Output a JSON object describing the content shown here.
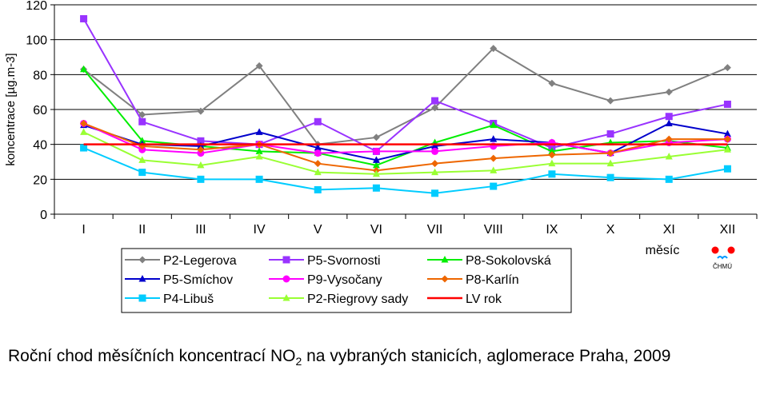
{
  "chart_data": {
    "type": "line",
    "ylabel": "koncentrace [µg.m-3]",
    "xlabel": "měsíc",
    "ylim": [
      0,
      120
    ],
    "yticks": [
      0,
      20,
      40,
      60,
      80,
      100,
      120
    ],
    "grid": true,
    "legend_position": "bottom",
    "categories": [
      "I",
      "II",
      "III",
      "IV",
      "V",
      "VI",
      "VII",
      "VIII",
      "IX",
      "X",
      "XI",
      "XII"
    ],
    "series": [
      {
        "name": "P2-Legerova",
        "color": "#808080",
        "marker": "diamond",
        "values": [
          83,
          57,
          59,
          85,
          40,
          44,
          61,
          95,
          75,
          65,
          70,
          84
        ]
      },
      {
        "name": "P5-Svornosti",
        "color": "#9933ff",
        "marker": "square",
        "values": [
          112,
          53,
          42,
          40,
          53,
          36,
          65,
          52,
          38,
          46,
          56,
          63
        ]
      },
      {
        "name": "P8-Sokolovská",
        "color": "#00ee00",
        "marker": "triangle",
        "values": [
          83,
          42,
          39,
          36,
          35,
          28,
          41,
          51,
          36,
          41,
          42,
          38
        ]
      },
      {
        "name": "P5-Smíchov",
        "color": "#0000cc",
        "marker": "triangle",
        "values": [
          51,
          40,
          39,
          47,
          38,
          31,
          39,
          43,
          41,
          35,
          52,
          46
        ]
      },
      {
        "name": "P9-Vysočany",
        "color": "#ff00ff",
        "marker": "circle",
        "values": [
          52,
          37,
          35,
          40,
          35,
          36,
          36,
          39,
          41,
          35,
          41,
          43
        ]
      },
      {
        "name": "P8-Karlín",
        "color": "#ee6600",
        "marker": "diamond",
        "values": [
          52,
          39,
          37,
          40,
          29,
          25,
          29,
          32,
          34,
          35,
          43,
          43
        ]
      },
      {
        "name": "P4-Libuš",
        "color": "#00ccff",
        "marker": "square",
        "values": [
          38,
          24,
          20,
          20,
          14,
          15,
          12,
          16,
          23,
          21,
          20,
          26
        ]
      },
      {
        "name": "P2-Riegrovy sady",
        "color": "#99ff33",
        "marker": "triangle",
        "values": [
          47,
          31,
          28,
          33,
          24,
          23,
          24,
          25,
          29,
          29,
          33,
          37
        ]
      },
      {
        "name": "LV rok",
        "color": "#ff0000",
        "marker": "none",
        "values": [
          40,
          40,
          40,
          40,
          40,
          40,
          40,
          40,
          40,
          40,
          40,
          40
        ]
      }
    ]
  },
  "logo": {
    "text": "ČHMÚ",
    "dot_colors": [
      "#ff0000",
      "#ff0000"
    ],
    "wave_color": "#0099ff"
  },
  "caption": {
    "part1": "Roční chod měsíčních koncentrací NO",
    "sub": "2",
    "part2": " na vybraných stanicích, aglomerace Praha, 2009"
  }
}
